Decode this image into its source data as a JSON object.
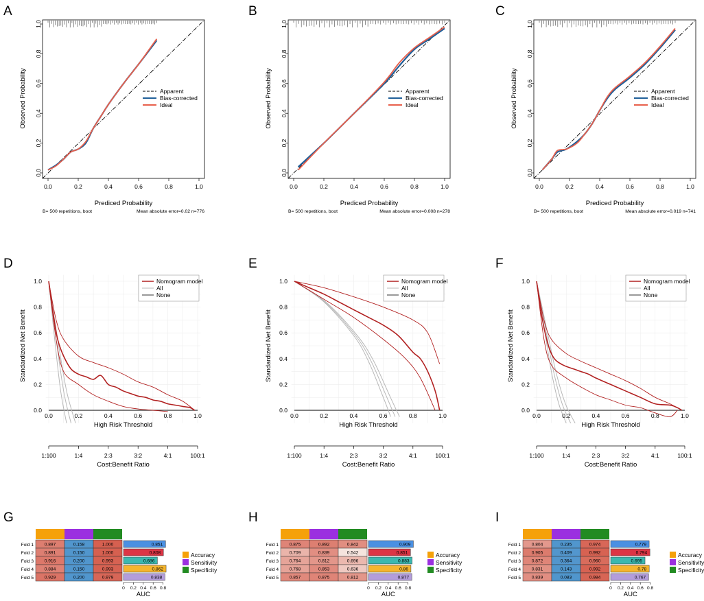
{
  "panels_letters": [
    "A",
    "B",
    "C",
    "D",
    "E",
    "F",
    "G",
    "H",
    "I"
  ],
  "calibration": [
    {
      "panel": "A",
      "chart_data": {
        "type": "line",
        "title": "",
        "xlabel": "Prediced Probability",
        "ylabel": "Observed Probability",
        "xlim": [
          0,
          1
        ],
        "ylim": [
          0,
          1
        ],
        "ticks": [
          "0.0",
          "0.2",
          "0.4",
          "0.6",
          "0.8",
          "1.0"
        ],
        "legend": [
          "Apparent",
          "Bias-corrected",
          "Ideal"
        ],
        "footer_left": "B= 500 repetitions, boot",
        "footer_right": "Mean absolute error=0.02 n=776",
        "rug_max": 0.72,
        "series": [
          {
            "name": "Apparent",
            "x": [
              0,
              1
            ],
            "y": [
              0,
              1
            ]
          },
          {
            "name": "Bias-corrected",
            "x": [
              0.0,
              0.05,
              0.1,
              0.15,
              0.2,
              0.25,
              0.3,
              0.35,
              0.4,
              0.5,
              0.6,
              0.72
            ],
            "y": [
              0.02,
              0.05,
              0.09,
              0.14,
              0.16,
              0.2,
              0.3,
              0.38,
              0.46,
              0.6,
              0.73,
              0.89
            ]
          },
          {
            "name": "Ideal",
            "x": [
              0.0,
              0.05,
              0.1,
              0.15,
              0.2,
              0.25,
              0.3,
              0.35,
              0.4,
              0.5,
              0.6,
              0.72
            ],
            "y": [
              0.02,
              0.045,
              0.09,
              0.14,
              0.16,
              0.21,
              0.3,
              0.38,
              0.46,
              0.6,
              0.73,
              0.9
            ]
          }
        ]
      }
    },
    {
      "panel": "B",
      "chart_data": {
        "type": "line",
        "title": "",
        "xlabel": "Prediced Probability",
        "ylabel": "Observed Probability",
        "xlim": [
          0,
          1
        ],
        "ylim": [
          0,
          1
        ],
        "ticks": [
          "0.0",
          "0.2",
          "0.4",
          "0.6",
          "0.8",
          "1.0"
        ],
        "legend": [
          "Apparent",
          "Bias-corrected",
          "Ideal"
        ],
        "footer_left": "B= 500 repetitions, boot",
        "footer_right": "Mean absolute error=0.008 n=278",
        "rug_max": 1.0,
        "series": [
          {
            "name": "Apparent",
            "x": [
              0,
              1
            ],
            "y": [
              0,
              1
            ]
          },
          {
            "name": "Bias-corrected",
            "x": [
              0.03,
              0.2,
              0.4,
              0.6,
              0.7,
              0.8,
              0.9,
              1.0
            ],
            "y": [
              0.04,
              0.2,
              0.4,
              0.6,
              0.72,
              0.83,
              0.9,
              0.97
            ]
          },
          {
            "name": "Ideal",
            "x": [
              0.03,
              0.2,
              0.4,
              0.6,
              0.7,
              0.8,
              0.9,
              1.0
            ],
            "y": [
              0.02,
              0.2,
              0.4,
              0.61,
              0.74,
              0.84,
              0.91,
              0.98
            ]
          }
        ]
      }
    },
    {
      "panel": "C",
      "chart_data": {
        "type": "line",
        "title": "",
        "xlabel": "Prediced Probability",
        "ylabel": "Observed Probability",
        "xlim": [
          0,
          1
        ],
        "ylim": [
          0,
          1
        ],
        "ticks": [
          "0.0",
          "0.2",
          "0.4",
          "0.6",
          "0.8",
          "1.0"
        ],
        "legend": [
          "Apparent",
          "Bias-corrected",
          "Ideal"
        ],
        "footer_left": "B= 500 repetitions, boot",
        "footer_right": "Mean absolute error=0.019 n=741",
        "rug_max": 0.9,
        "series": [
          {
            "name": "Apparent",
            "x": [
              0,
              1
            ],
            "y": [
              0,
              1
            ]
          },
          {
            "name": "Bias-corrected",
            "x": [
              0.02,
              0.08,
              0.12,
              0.18,
              0.25,
              0.3,
              0.35,
              0.4,
              0.45,
              0.5,
              0.6,
              0.7,
              0.8,
              0.9
            ],
            "y": [
              0.02,
              0.09,
              0.14,
              0.16,
              0.21,
              0.26,
              0.33,
              0.42,
              0.5,
              0.56,
              0.64,
              0.73,
              0.84,
              0.96
            ]
          },
          {
            "name": "Ideal",
            "x": [
              0.02,
              0.08,
              0.12,
              0.18,
              0.25,
              0.3,
              0.35,
              0.4,
              0.45,
              0.5,
              0.6,
              0.7,
              0.8,
              0.9
            ],
            "y": [
              0.02,
              0.09,
              0.15,
              0.16,
              0.2,
              0.26,
              0.33,
              0.42,
              0.51,
              0.57,
              0.65,
              0.74,
              0.85,
              0.97
            ]
          }
        ]
      }
    }
  ],
  "dca": [
    {
      "panel": "D",
      "chart_data": {
        "type": "line",
        "xlabel": "High Risk Threshold",
        "ylabel": "Standardized Net Benefit",
        "xlabel2": "Cost:Benefit Ratio",
        "xlim": [
          0,
          1
        ],
        "ylim": [
          0,
          1
        ],
        "ticks": [
          "0.0",
          "0.2",
          "0.4",
          "0.6",
          "0.8",
          "1.0"
        ],
        "ratio_ticks": [
          "1:100",
          "1:4",
          "2:3",
          "3:2",
          "4:1",
          "100:1"
        ],
        "legend": [
          "Nomogram model",
          "All",
          "None"
        ],
        "series": [
          {
            "name": "Nomogram model",
            "x": [
              0,
              0.03,
              0.06,
              0.1,
              0.15,
              0.2,
              0.25,
              0.3,
              0.35,
              0.4,
              0.45,
              0.5,
              0.55,
              0.6,
              0.65,
              0.7,
              0.75,
              0.8,
              0.85,
              0.9,
              0.95,
              0.98
            ],
            "y": [
              1.0,
              0.75,
              0.55,
              0.42,
              0.32,
              0.28,
              0.26,
              0.24,
              0.27,
              0.2,
              0.18,
              0.15,
              0.13,
              0.11,
              0.1,
              0.08,
              0.07,
              0.05,
              0.04,
              0.03,
              0.02,
              0.0
            ]
          },
          {
            "name": "Upper CI",
            "x": [
              0,
              0.05,
              0.1,
              0.2,
              0.3,
              0.4,
              0.5,
              0.6,
              0.7,
              0.8,
              0.9,
              0.98
            ],
            "y": [
              1.0,
              0.7,
              0.55,
              0.42,
              0.37,
              0.33,
              0.28,
              0.22,
              0.18,
              0.12,
              0.07,
              0.0
            ]
          },
          {
            "name": "Lower CI",
            "x": [
              0,
              0.05,
              0.1,
              0.2,
              0.3,
              0.4,
              0.5,
              0.6,
              0.7,
              0.8
            ],
            "y": [
              1.0,
              0.55,
              0.3,
              0.2,
              0.12,
              0.07,
              0.03,
              0.01,
              0.0,
              -0.01
            ]
          },
          {
            "name": "All",
            "x": [
              0,
              0.04,
              0.08,
              0.12
            ],
            "y": [
              1.0,
              0.55,
              0.15,
              -0.1
            ]
          },
          {
            "name": "None",
            "x": [
              0,
              1
            ],
            "y": [
              0,
              0
            ]
          }
        ]
      }
    },
    {
      "panel": "E",
      "chart_data": {
        "type": "line",
        "xlabel": "High Risk Threshold",
        "ylabel": "Standardized Net Benefit",
        "xlabel2": "Cost:Benefit Ratio",
        "xlim": [
          0,
          1
        ],
        "ylim": [
          0,
          1
        ],
        "ticks": [
          "0.0",
          "0.2",
          "0.4",
          "0.6",
          "0.8",
          "1.0"
        ],
        "ratio_ticks": [
          "1:100",
          "1:4",
          "2:3",
          "3:2",
          "4:1",
          "100:1"
        ],
        "legend": [
          "Nomogram model",
          "All",
          "None"
        ],
        "series": [
          {
            "name": "Nomogram model",
            "x": [
              0,
              0.1,
              0.2,
              0.3,
              0.4,
              0.5,
              0.6,
              0.7,
              0.8,
              0.85,
              0.9,
              0.95,
              0.98
            ],
            "y": [
              1.0,
              0.95,
              0.9,
              0.84,
              0.78,
              0.72,
              0.66,
              0.58,
              0.45,
              0.4,
              0.3,
              0.15,
              0.0
            ]
          },
          {
            "name": "Upper CI",
            "x": [
              0,
              0.2,
              0.4,
              0.6,
              0.8,
              0.9,
              0.98
            ],
            "y": [
              1.0,
              0.95,
              0.88,
              0.8,
              0.7,
              0.6,
              0.36
            ]
          },
          {
            "name": "Lower CI",
            "x": [
              0,
              0.2,
              0.4,
              0.6,
              0.75,
              0.85,
              0.95
            ],
            "y": [
              1.0,
              0.86,
              0.72,
              0.55,
              0.4,
              0.25,
              0.0
            ]
          },
          {
            "name": "All",
            "x": [
              0,
              0.2,
              0.4,
              0.5,
              0.6,
              0.65
            ],
            "y": [
              1.0,
              0.84,
              0.58,
              0.38,
              0.1,
              -0.05
            ]
          },
          {
            "name": "None",
            "x": [
              0,
              1
            ],
            "y": [
              0,
              0
            ]
          }
        ]
      }
    },
    {
      "panel": "F",
      "chart_data": {
        "type": "line",
        "xlabel": "High Risk Threshold",
        "ylabel": "Standardized Net Benefit",
        "xlabel2": "Cost:Benefit Ratio",
        "xlim": [
          0,
          1
        ],
        "ylim": [
          0,
          1
        ],
        "ticks": [
          "0.0",
          "0.2",
          "0.4",
          "0.6",
          "0.8",
          "1.0"
        ],
        "ratio_ticks": [
          "1:100",
          "1:4",
          "2:3",
          "3:2",
          "4:1",
          "100:1"
        ],
        "legend": [
          "Nomogram model",
          "All",
          "None"
        ],
        "series": [
          {
            "name": "Nomogram model",
            "x": [
              0,
              0.04,
              0.08,
              0.12,
              0.18,
              0.25,
              0.3,
              0.35,
              0.4,
              0.5,
              0.6,
              0.7,
              0.8,
              0.9,
              0.95,
              0.98
            ],
            "y": [
              1.0,
              0.7,
              0.5,
              0.4,
              0.35,
              0.32,
              0.3,
              0.28,
              0.25,
              0.2,
              0.15,
              0.1,
              0.05,
              0.04,
              0.02,
              0.0
            ]
          },
          {
            "name": "Upper CI",
            "x": [
              0,
              0.05,
              0.1,
              0.2,
              0.3,
              0.4,
              0.5,
              0.6,
              0.7,
              0.8,
              0.9,
              0.98
            ],
            "y": [
              1.0,
              0.7,
              0.55,
              0.44,
              0.38,
              0.33,
              0.28,
              0.23,
              0.17,
              0.1,
              0.05,
              0.0
            ]
          },
          {
            "name": "Lower CI",
            "x": [
              0,
              0.05,
              0.1,
              0.2,
              0.3,
              0.4,
              0.5,
              0.6,
              0.7,
              0.8,
              0.9,
              0.95
            ],
            "y": [
              1.0,
              0.55,
              0.35,
              0.25,
              0.18,
              0.12,
              0.08,
              0.04,
              0.02,
              -0.02,
              -0.05,
              0.0
            ]
          },
          {
            "name": "All",
            "x": [
              0,
              0.05,
              0.1,
              0.15,
              0.2
            ],
            "y": [
              1.0,
              0.65,
              0.3,
              0.05,
              -0.1
            ]
          },
          {
            "name": "None",
            "x": [
              0,
              1
            ],
            "y": [
              0,
              0
            ]
          }
        ]
      }
    }
  ],
  "cv": [
    {
      "panel": "G",
      "chart_data": {
        "type": "heatmap",
        "xlabel": "AUC",
        "rows": [
          "Fold 1",
          "Fold 2",
          "Fold 3",
          "Fold 4",
          "Fold 5"
        ],
        "columns": [
          "Accuracy",
          "Sensitivity",
          "Specificity"
        ],
        "cells": [
          [
            "0.897",
            "0.158",
            "1.000"
          ],
          [
            "0.891",
            "0.150",
            "1.000"
          ],
          [
            "0.916",
            "0.200",
            "0.993"
          ],
          [
            "0.884",
            "0.150",
            "0.993"
          ],
          [
            "0.929",
            "0.200",
            "0.979"
          ]
        ],
        "auc": [
          0.851,
          0.808,
          0.686,
          0.862,
          0.838
        ],
        "auc_labels": [
          "0.851",
          "0.808",
          "0.686",
          "0.862",
          "0.838"
        ],
        "auc_ticks": [
          "0",
          "0.2",
          "0.4",
          "0.6",
          "0.8"
        ],
        "legend": [
          "Accuracy",
          "Sensitivity",
          "Specificity"
        ]
      }
    },
    {
      "panel": "H",
      "chart_data": {
        "type": "heatmap",
        "xlabel": "AUC",
        "rows": [
          "Fold 1",
          "Fold 2",
          "Fold 3",
          "Fold 4",
          "Fold 5"
        ],
        "columns": [
          "Accuracy",
          "Sensitivity",
          "Specificity"
        ],
        "cells": [
          [
            "0.875",
            "0.892",
            "0.842"
          ],
          [
            "0.709",
            "0.839",
            "0.542"
          ],
          [
            "0.764",
            "0.812",
            "0.696"
          ],
          [
            "0.768",
            "0.853",
            "0.636"
          ],
          [
            "0.857",
            "0.875",
            "0.812"
          ]
        ],
        "auc": [
          0.909,
          0.851,
          0.883,
          0.86,
          0.877
        ],
        "auc_labels": [
          "0.909",
          "0.851",
          "0.883",
          "0.86",
          "0.877"
        ],
        "auc_ticks": [
          "0",
          "0.2",
          "0.4",
          "0.6",
          "0.8"
        ],
        "legend": [
          "Accuracy",
          "Sensitivity",
          "Specificity"
        ]
      }
    },
    {
      "panel": "I",
      "chart_data": {
        "type": "heatmap",
        "xlabel": "AUC",
        "rows": [
          "Fold 1",
          "Fold 2",
          "Fold 3",
          "Fold 4",
          "Fold 5"
        ],
        "columns": [
          "Accuracy",
          "Sensitivity",
          "Specificity"
        ],
        "cells": [
          [
            "0.804",
            "0.235",
            "0.974"
          ],
          [
            "0.905",
            "0.409",
            "0.992"
          ],
          [
            "0.872",
            "0.364",
            "0.960"
          ],
          [
            "0.831",
            "0.143",
            "0.992"
          ],
          [
            "0.839",
            "0.083",
            "0.984"
          ]
        ],
        "auc": [
          0.779,
          0.794,
          0.695,
          0.78,
          0.767
        ],
        "auc_labels": [
          "0.779",
          "0.794",
          "0.695",
          "0.78",
          "0.767"
        ],
        "auc_ticks": [
          "0",
          "0.2",
          "0.4",
          "0.6",
          "0.8"
        ],
        "legend": [
          "Accuracy",
          "Sensitivity",
          "Specificity"
        ]
      }
    }
  ],
  "colors": {
    "bias_corrected": "#1f5f99",
    "ideal": "#e8604c",
    "nomogram": "#b22222",
    "all": "#b8b8b8",
    "none": "#333333",
    "accuracy": "#f5a10a",
    "sensitivity": "#9b30e0",
    "specificity": "#228b22",
    "auc_bars": [
      "#4a90e2",
      "#dc3545",
      "#3bb8b0",
      "#f5b52e",
      "#b39ddb"
    ]
  }
}
